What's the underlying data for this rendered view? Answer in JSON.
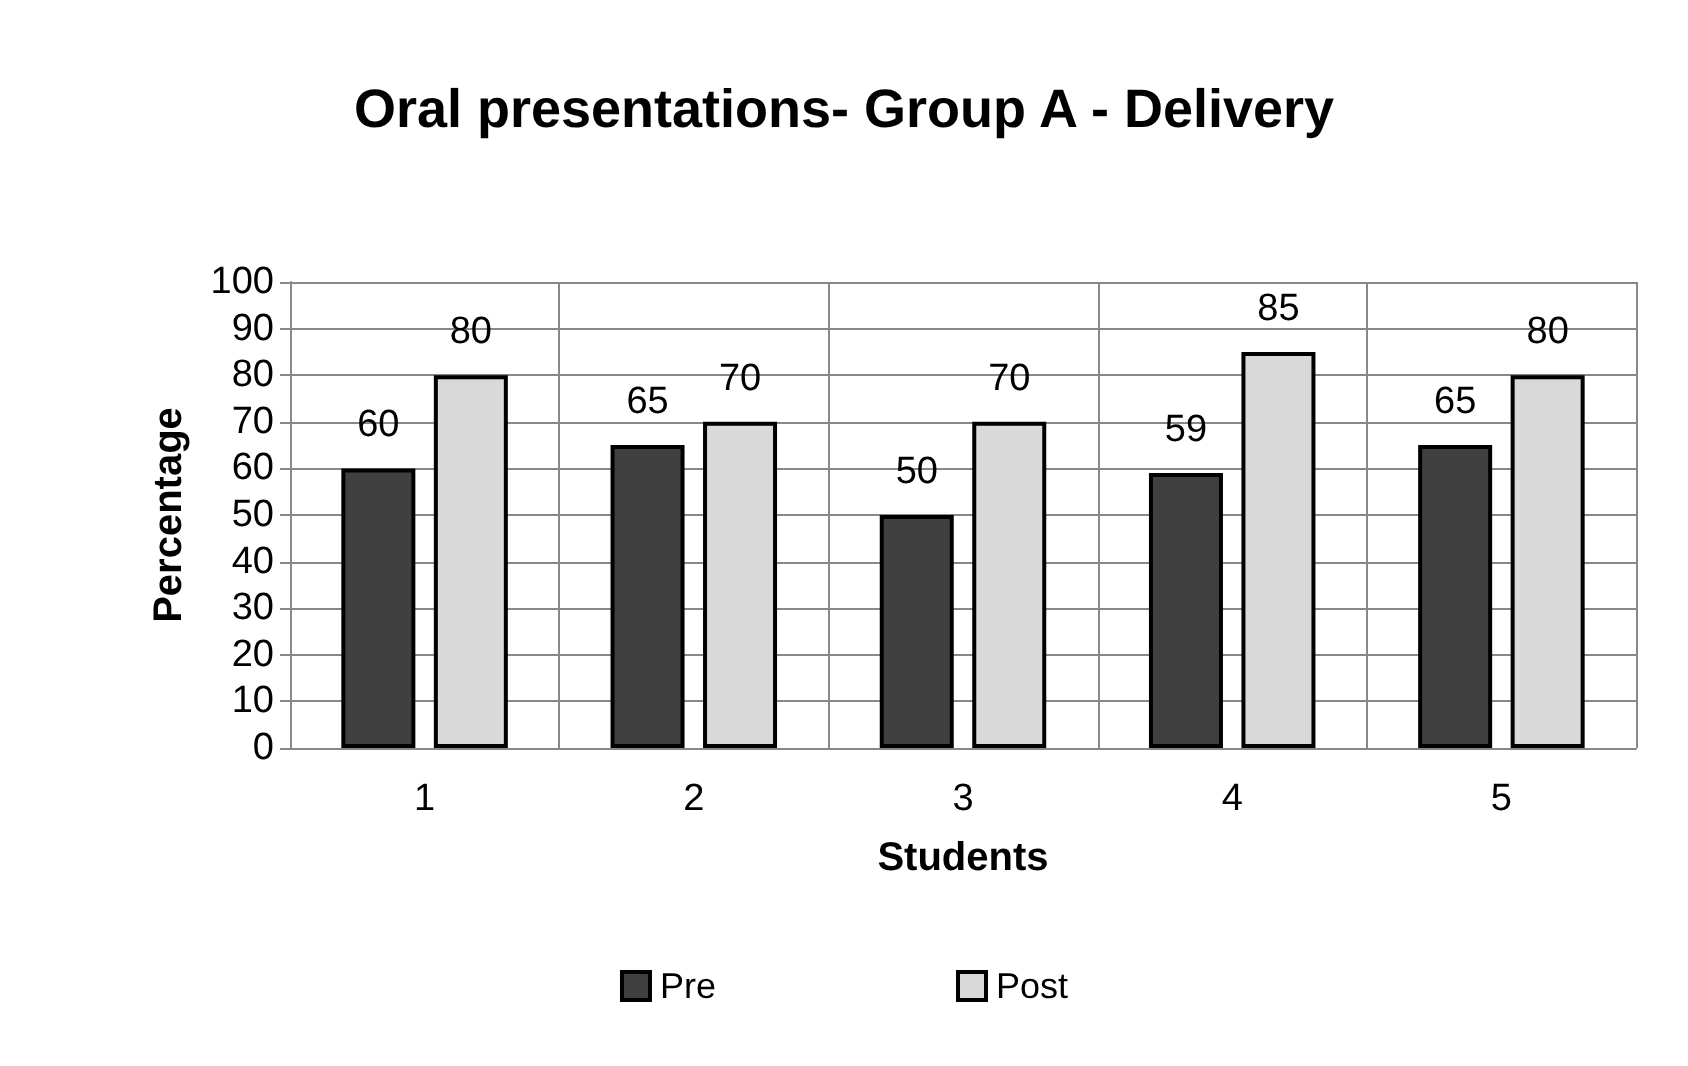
{
  "chart_data": {
    "type": "bar",
    "title": "Oral presentations- Group A - Delivery",
    "xlabel": "Students",
    "ylabel": "Percentage",
    "categories": [
      "1",
      "2",
      "3",
      "4",
      "5"
    ],
    "series": [
      {
        "name": "Pre",
        "color": "#404040",
        "values": [
          60,
          65,
          50,
          59,
          65
        ]
      },
      {
        "name": "Post",
        "color": "#d9d9d9",
        "values": [
          80,
          70,
          70,
          85,
          80
        ]
      }
    ],
    "ylim": [
      0,
      100
    ],
    "yticks": [
      0,
      10,
      20,
      30,
      40,
      50,
      60,
      70,
      80,
      90,
      100
    ],
    "grid": true,
    "legend": "bottom",
    "data_labels": true
  }
}
